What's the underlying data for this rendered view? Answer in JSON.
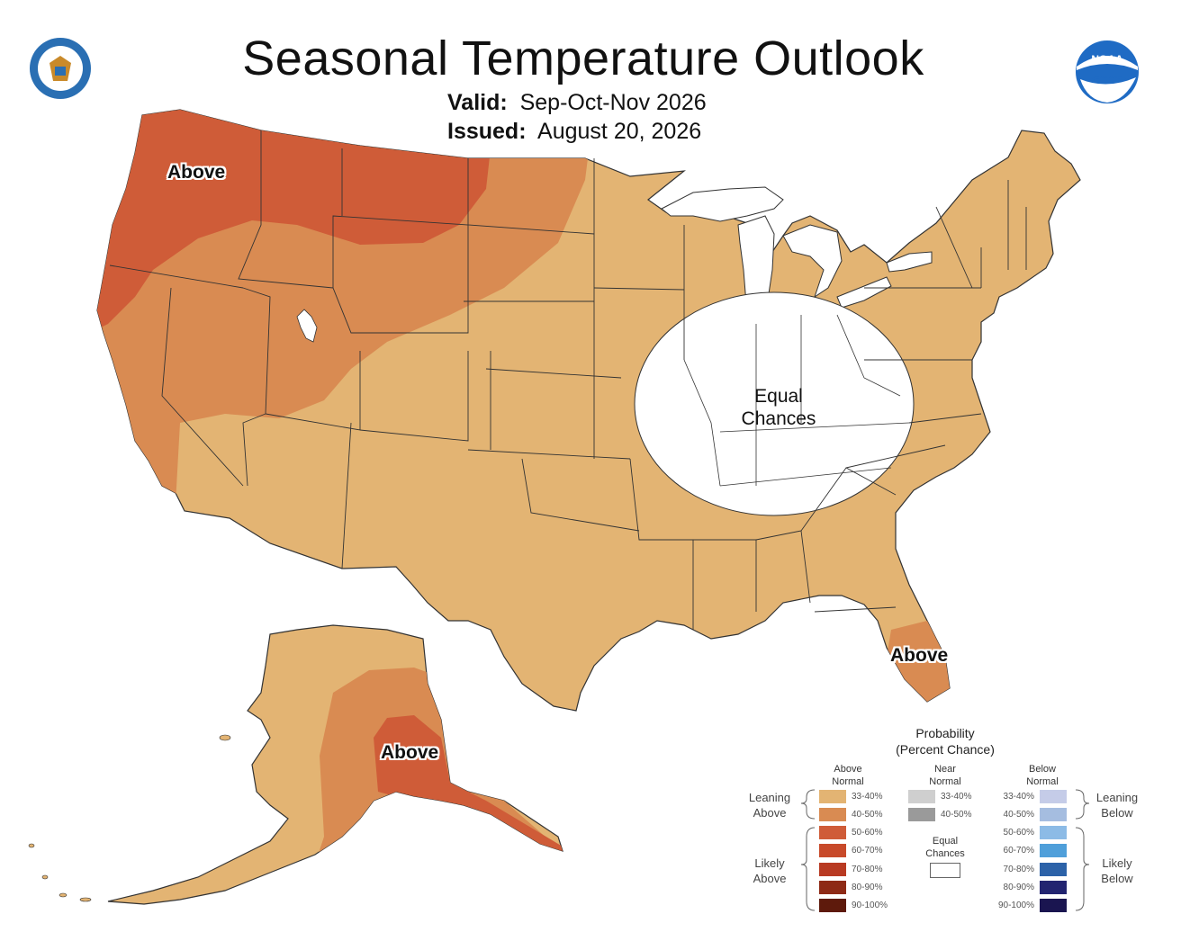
{
  "header": {
    "title": "Seasonal Temperature Outlook",
    "valid_label": "Valid:",
    "valid_value": "Sep-Oct-Nov 2026",
    "issued_label": "Issued:",
    "issued_value": "August 20, 2026"
  },
  "logos": {
    "commerce": "department-of-commerce-seal",
    "noaa": "noaa-logo",
    "noaa_text": "NOAA"
  },
  "map_labels": {
    "northwest": "Above",
    "florida": "Above",
    "alaska": "Above",
    "equal_chances_line1": "Equal",
    "equal_chances_line2": "Chances"
  },
  "colors": {
    "above_33_40": "#e3b473",
    "above_40_50": "#d98b52",
    "above_50_60": "#cf5c38",
    "above_60_70": "#c84a2a",
    "above_70_80": "#b83a22",
    "above_80_90": "#8e2a16",
    "above_90_100": "#5e1a0c",
    "near_33_40": "#cfcfcf",
    "near_40_50": "#9a9a9a",
    "below_33_40": "#c5cce8",
    "below_40_50": "#a5bde0",
    "below_50_60": "#8cbbe6",
    "below_60_70": "#4f9fda",
    "below_70_80": "#2c62a8",
    "below_80_90": "#222470",
    "below_90_100": "#1a1550"
  },
  "legend": {
    "title_line1": "Probability",
    "title_line2": "(Percent Chance)",
    "above_head_1": "Above",
    "above_head_2": "Normal",
    "near_head_1": "Near",
    "near_head_2": "Normal",
    "below_head_1": "Below",
    "below_head_2": "Normal",
    "leaning_above_1": "Leaning",
    "leaning_above_2": "Above",
    "likely_above_1": "Likely",
    "likely_above_2": "Above",
    "leaning_below_1": "Leaning",
    "leaning_below_2": "Below",
    "likely_below_1": "Likely",
    "likely_below_2": "Below",
    "equal_1": "Equal",
    "equal_2": "Chances",
    "above_rows": [
      "33-40%",
      "40-50%",
      "50-60%",
      "60-70%",
      "70-80%",
      "80-90%",
      "90-100%"
    ],
    "near_rows": [
      "33-40%",
      "40-50%"
    ],
    "below_rows": [
      "33-40%",
      "40-50%",
      "50-60%",
      "60-70%",
      "70-80%",
      "80-90%",
      "90-100%"
    ]
  }
}
